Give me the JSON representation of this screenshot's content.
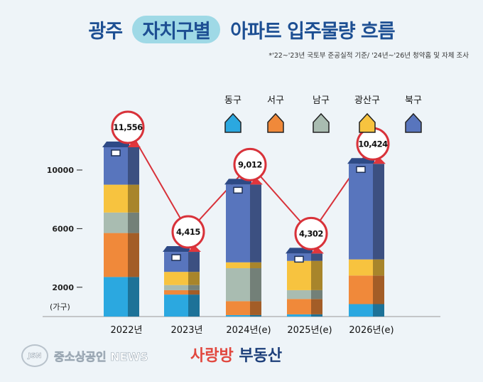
{
  "title": {
    "part1": "광주",
    "highlight": "자치구별",
    "part2": "아파트 입주물량 흐름"
  },
  "note": "*'22~'23년 국토부 준공실적 기준/ '24년~'26년 청약홈 및 자체 조사",
  "footer": {
    "logo_mark": "JSN",
    "news_name": "중소상공인 NEWS",
    "brand_accent": "사랑방",
    "brand_rest": " 부동산"
  },
  "chart_data": {
    "type": "bar",
    "stacked": true,
    "unit_label": "(가구)",
    "categories": [
      "2022년",
      "2023년",
      "2024년(e)",
      "2025년(e)",
      "2026년(e)"
    ],
    "totals": [
      11556,
      4415,
      9012,
      4302,
      10424
    ],
    "total_labels": [
      "11,556",
      "4,415",
      "9,012",
      "4,302",
      "10,424"
    ],
    "yticks": [
      2000,
      6000,
      10000
    ],
    "ylim": [
      0,
      12000
    ],
    "series": [
      {
        "name": "동구",
        "color": "#2ba8e0",
        "values": [
          2700,
          1500,
          100,
          150,
          850
        ]
      },
      {
        "name": "서구",
        "color": "#f0893a",
        "values": [
          3000,
          300,
          950,
          1050,
          1950
        ]
      },
      {
        "name": "남구",
        "color": "#a9bcb1",
        "values": [
          1400,
          350,
          2250,
          600,
          0
        ]
      },
      {
        "name": "광산구",
        "color": "#f7c33f",
        "values": [
          1900,
          900,
          400,
          2000,
          1100
        ]
      },
      {
        "name": "북구",
        "color": "#5875bd",
        "values": [
          2556,
          1365,
          5312,
          502,
          6524
        ]
      }
    ]
  }
}
